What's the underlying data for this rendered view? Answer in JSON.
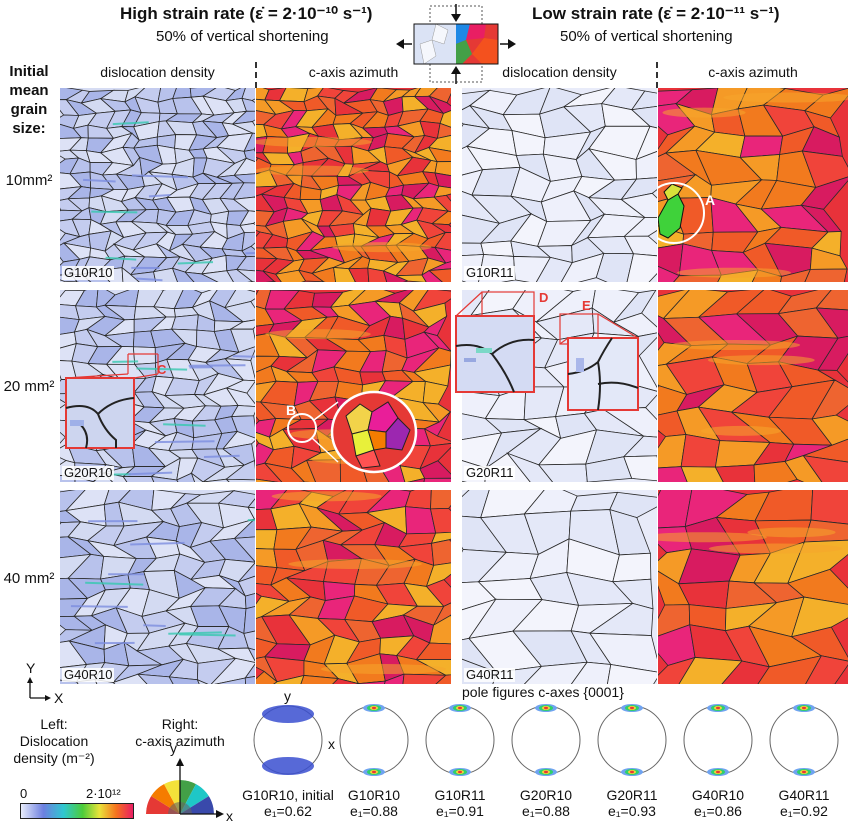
{
  "header": {
    "left_title": "High strain rate (ε̇ = 2·10⁻¹⁰ s⁻¹)",
    "left_sub": "50% of vertical shortening",
    "right_title": "Low strain rate (ε̇ = 2·10⁻¹¹ s⁻¹)",
    "right_sub": "50% of vertical shortening"
  },
  "columns": [
    "dislocation density",
    "c-axis azimuth",
    "dislocation density",
    "c-axis azimuth"
  ],
  "row_heading": [
    "Initial",
    "mean",
    "grain",
    "size:"
  ],
  "rows": [
    {
      "size": "10mm²",
      "left_code": "G10R10",
      "right_code": "G10R11"
    },
    {
      "size": "20 mm²",
      "left_code": "G20R10",
      "right_code": "G20R11"
    },
    {
      "size": "40 mm²",
      "left_code": "G40R10",
      "right_code": "G40R11"
    }
  ],
  "callouts": [
    "A",
    "B",
    "C",
    "D",
    "E"
  ],
  "axes": {
    "y": "Y",
    "x": "X"
  },
  "legend": {
    "left_title_1": "Left:",
    "left_title_2": "Dislocation",
    "left_title_3": "density (m⁻²)",
    "min": "0",
    "max": "2·10¹²",
    "right_title_1": "Right:",
    "right_title_2": "c-axis azimuth",
    "wheel_y": "y",
    "wheel_x": "x"
  },
  "pole_figures": {
    "title": "pole figures c-axes {0001}",
    "y_label": "y",
    "x_label": "x",
    "items": [
      {
        "name": "G10R10, initial",
        "e1": "e₁=0.62"
      },
      {
        "name": "G10R10",
        "e1": "e₁=0.88"
      },
      {
        "name": "G10R11",
        "e1": "e₁=0.91"
      },
      {
        "name": "G20R10",
        "e1": "e₁=0.88"
      },
      {
        "name": "G20R11",
        "e1": "e₁=0.93"
      },
      {
        "name": "G40R10",
        "e1": "e₁=0.86"
      },
      {
        "name": "G40R11",
        "e1": "e₁=0.92"
      }
    ]
  }
}
